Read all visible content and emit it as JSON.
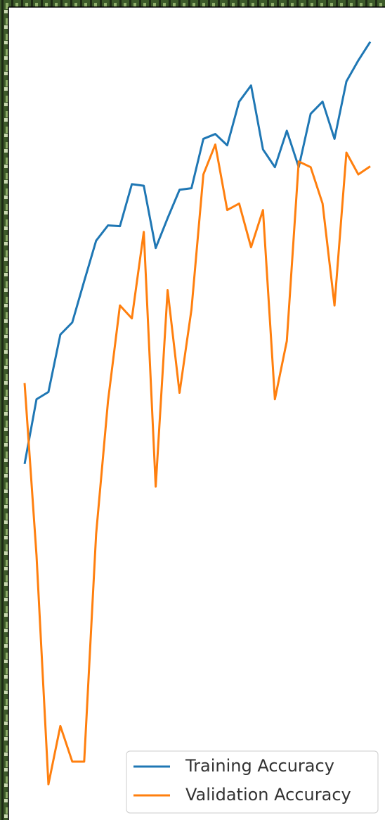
{
  "chart_data": {
    "type": "line",
    "series": [
      {
        "name": "Training Accuracy",
        "color": "#1f77b4",
        "values": [
          0.435,
          0.515,
          0.524,
          0.595,
          0.61,
          0.661,
          0.711,
          0.73,
          0.729,
          0.781,
          0.779,
          0.702,
          0.739,
          0.774,
          0.776,
          0.837,
          0.843,
          0.829,
          0.883,
          0.903,
          0.824,
          0.802,
          0.847,
          0.802,
          0.868,
          0.883,
          0.837,
          0.908,
          0.934,
          0.957
        ]
      },
      {
        "name": "Validation Accuracy",
        "color": "#ff7f0e",
        "values": [
          0.535,
          0.322,
          0.039,
          0.111,
          0.067,
          0.067,
          0.348,
          0.513,
          0.631,
          0.615,
          0.722,
          0.407,
          0.65,
          0.523,
          0.626,
          0.793,
          0.83,
          0.749,
          0.757,
          0.703,
          0.749,
          0.515,
          0.587,
          0.809,
          0.802,
          0.757,
          0.631,
          0.82,
          0.793,
          0.803
        ]
      }
    ],
    "ylim": [
      0,
      1
    ],
    "legend": "lower right"
  }
}
